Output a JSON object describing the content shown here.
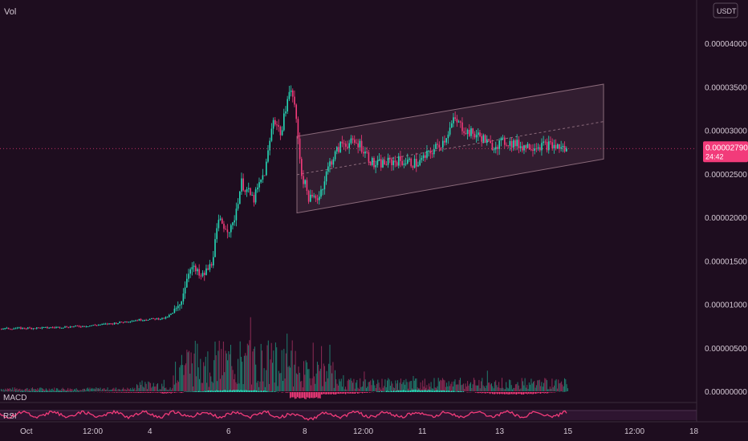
{
  "header": {
    "vol_label": "Vol",
    "currency_label": "USDT"
  },
  "price_axis": {
    "ticks": [
      "0.00004000",
      "0.00003500",
      "0.00003000",
      "0.00002500",
      "0.00002000",
      "0.00001500",
      "0.00001000",
      "0.00000500",
      "0.00000000"
    ],
    "ymin": 0.0,
    "ymax": 4e-05
  },
  "current_price": {
    "value": "0.00002790",
    "countdown": "24:42"
  },
  "time_axis": {
    "labels": [
      "Oct",
      "12:00",
      "4",
      "6",
      "8",
      "12:00",
      "11",
      "13",
      "15",
      "12:00",
      "18"
    ]
  },
  "indicators": {
    "macd_label": "MACD",
    "rsi_label": "RSI"
  },
  "colors": {
    "up": "#26d9b7",
    "down": "#f23b7a",
    "background": "#1e0d1f",
    "grid": "#2d1c2e",
    "text": "#d4c8d4",
    "price_tag": "#f23b7a"
  },
  "chart_data": {
    "type": "candlestick",
    "price_range": [
      0.0,
      4e-05
    ],
    "volume_overlay": true,
    "x_tick_labels": [
      "Oct",
      "12:00",
      "4",
      "6",
      "8",
      "12:00",
      "11",
      "13",
      "15",
      "12:00",
      "18"
    ],
    "y_tick_labels": [
      "0.00004000",
      "0.00003500",
      "0.00003000",
      "0.00002500",
      "0.00002000",
      "0.00001500",
      "0.00001000",
      "0.00000500",
      "0.00000000"
    ],
    "last_price": 2.79e-05,
    "channel": {
      "upper": [
        2.93e-05,
        3.53e-05
      ],
      "lower": [
        2.05e-05,
        2.67e-05
      ]
    },
    "trend_points": [
      [
        0,
        7.2e-06
      ],
      [
        55,
        7.3e-06
      ],
      [
        105,
        7.5e-06
      ],
      [
        140,
        7.8e-06
      ],
      [
        170,
        8.2e-06
      ],
      [
        205,
        8.4e-06
      ],
      [
        222,
        9.5e-06
      ],
      [
        236,
        1.45e-05
      ],
      [
        250,
        1.3e-05
      ],
      [
        262,
        1.45e-05
      ],
      [
        272,
        1.95e-05
      ],
      [
        288,
        1.85e-05
      ],
      [
        300,
        2.4e-05
      ],
      [
        315,
        2.2e-05
      ],
      [
        330,
        2.55e-05
      ],
      [
        340,
        3.15e-05
      ],
      [
        350,
        2.95e-05
      ],
      [
        358,
        3.45e-05
      ],
      [
        365,
        3.4e-05
      ],
      [
        375,
        2.5e-05
      ],
      [
        385,
        2.2e-05
      ],
      [
        397,
        2.25e-05
      ],
      [
        410,
        2.62e-05
      ],
      [
        425,
        2.85e-05
      ],
      [
        447,
        2.85e-05
      ],
      [
        465,
        2.6e-05
      ],
      [
        495,
        2.65e-05
      ],
      [
        520,
        2.62e-05
      ],
      [
        552,
        2.88e-05
      ],
      [
        565,
        3.12e-05
      ],
      [
        582,
        2.98e-05
      ],
      [
        600,
        2.92e-05
      ],
      [
        610,
        2.82e-05
      ],
      [
        630,
        2.87e-05
      ],
      [
        650,
        2.82e-05
      ],
      [
        682,
        2.83e-05
      ],
      [
        700,
        2.8e-05
      ],
      [
        707,
        2.75e-05
      ]
    ]
  }
}
